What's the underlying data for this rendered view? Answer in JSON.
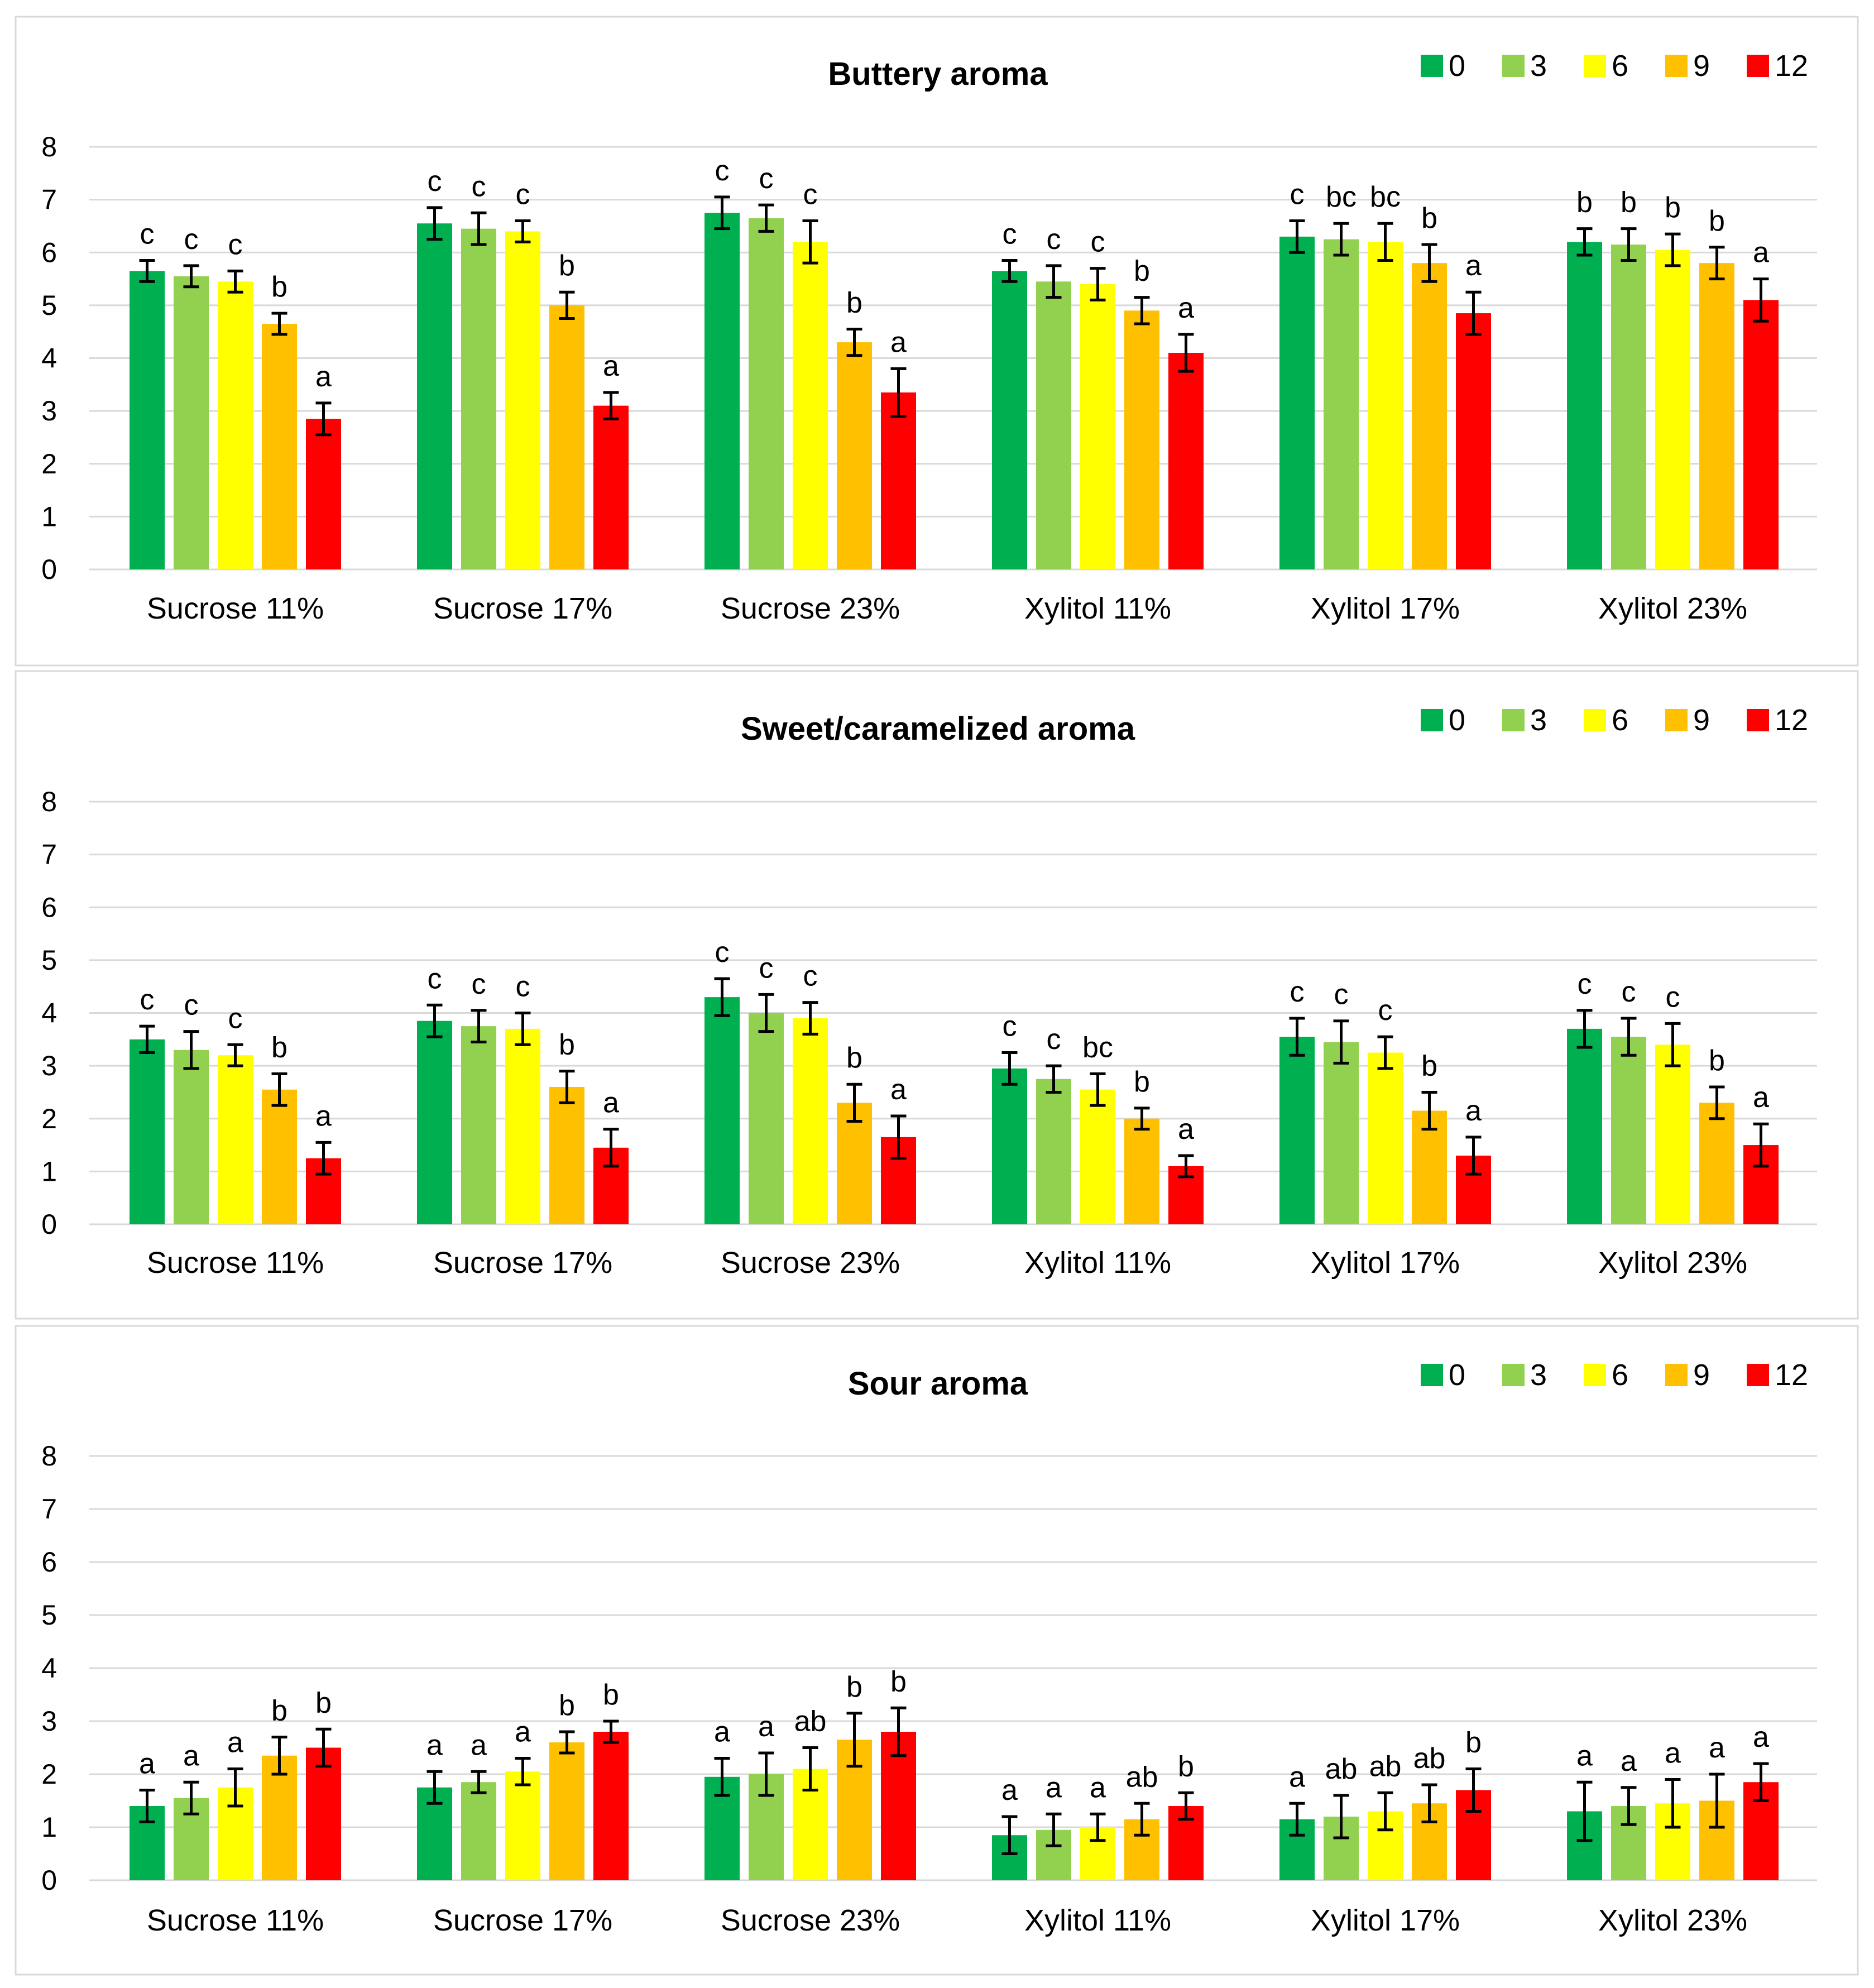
{
  "legend": {
    "entries": [
      {
        "label": "0",
        "color": "#00B050"
      },
      {
        "label": "3",
        "color": "#92D050"
      },
      {
        "label": "6",
        "color": "#FFFF00"
      },
      {
        "label": "9",
        "color": "#FFC000"
      },
      {
        "label": "12",
        "color": "#FF0000"
      }
    ]
  },
  "chart_data": [
    {
      "type": "bar",
      "title": "Buttery aroma",
      "ylim": [
        0,
        8
      ],
      "yticks": [
        0,
        1,
        2,
        3,
        4,
        5,
        6,
        7,
        8
      ],
      "categories": [
        "Sucrose 11%",
        "Sucrose 17%",
        "Sucrose 23%",
        "Xylitol 11%",
        "Xylitol 17%",
        "Xylitol 23%"
      ],
      "series": [
        {
          "name": "0",
          "color": "#00B050",
          "values": [
            5.65,
            6.55,
            6.75,
            5.65,
            6.3,
            6.2
          ],
          "errors": [
            0.2,
            0.3,
            0.3,
            0.2,
            0.3,
            0.25
          ],
          "labels": [
            "c",
            "c",
            "c",
            "c",
            "c",
            "b"
          ]
        },
        {
          "name": "3",
          "color": "#92D050",
          "values": [
            5.55,
            6.45,
            6.65,
            5.45,
            6.25,
            6.15
          ],
          "errors": [
            0.2,
            0.3,
            0.25,
            0.3,
            0.3,
            0.3
          ],
          "labels": [
            "c",
            "c",
            "c",
            "c",
            "bc",
            "b"
          ]
        },
        {
          "name": "6",
          "color": "#FFFF00",
          "values": [
            5.45,
            6.4,
            6.2,
            5.4,
            6.2,
            6.05
          ],
          "errors": [
            0.2,
            0.2,
            0.4,
            0.3,
            0.35,
            0.3
          ],
          "labels": [
            "c",
            "c",
            "c",
            "c",
            "bc",
            "b"
          ]
        },
        {
          "name": "9",
          "color": "#FFC000",
          "values": [
            4.65,
            5.0,
            4.3,
            4.9,
            5.8,
            5.8
          ],
          "errors": [
            0.2,
            0.25,
            0.25,
            0.25,
            0.35,
            0.3
          ],
          "labels": [
            "b",
            "b",
            "b",
            "b",
            "b",
            "b"
          ]
        },
        {
          "name": "12",
          "color": "#FF0000",
          "values": [
            2.85,
            3.1,
            3.35,
            4.1,
            4.85,
            5.1
          ],
          "errors": [
            0.3,
            0.25,
            0.45,
            0.35,
            0.4,
            0.4
          ],
          "labels": [
            "a",
            "a",
            "a",
            "a",
            "a",
            "a"
          ]
        }
      ]
    },
    {
      "type": "bar",
      "title": "Sweet/caramelized aroma",
      "ylim": [
        0,
        8
      ],
      "yticks": [
        0,
        1,
        2,
        3,
        4,
        5,
        6,
        7,
        8
      ],
      "categories": [
        "Sucrose 11%",
        "Sucrose 17%",
        "Sucrose 23%",
        "Xylitol 11%",
        "Xylitol 17%",
        "Xylitol 23%"
      ],
      "series": [
        {
          "name": "0",
          "color": "#00B050",
          "values": [
            3.5,
            3.85,
            4.3,
            2.95,
            3.55,
            3.7
          ],
          "errors": [
            0.25,
            0.3,
            0.35,
            0.3,
            0.35,
            0.35
          ],
          "labels": [
            "c",
            "c",
            "c",
            "c",
            "c",
            "c"
          ]
        },
        {
          "name": "3",
          "color": "#92D050",
          "values": [
            3.3,
            3.75,
            4.0,
            2.75,
            3.45,
            3.55
          ],
          "errors": [
            0.35,
            0.3,
            0.35,
            0.25,
            0.4,
            0.35
          ],
          "labels": [
            "c",
            "c",
            "c",
            "c",
            "c",
            "c"
          ]
        },
        {
          "name": "6",
          "color": "#FFFF00",
          "values": [
            3.2,
            3.7,
            3.9,
            2.55,
            3.25,
            3.4
          ],
          "errors": [
            0.2,
            0.3,
            0.3,
            0.3,
            0.3,
            0.4
          ],
          "labels": [
            "c",
            "c",
            "c",
            "bc",
            "c",
            "c"
          ]
        },
        {
          "name": "9",
          "color": "#FFC000",
          "values": [
            2.55,
            2.6,
            2.3,
            2.0,
            2.15,
            2.3
          ],
          "errors": [
            0.3,
            0.3,
            0.35,
            0.2,
            0.35,
            0.3
          ],
          "labels": [
            "b",
            "b",
            "b",
            "b",
            "b",
            "b"
          ]
        },
        {
          "name": "12",
          "color": "#FF0000",
          "values": [
            1.25,
            1.45,
            1.65,
            1.1,
            1.3,
            1.5
          ],
          "errors": [
            0.3,
            0.35,
            0.4,
            0.2,
            0.35,
            0.4
          ],
          "labels": [
            "a",
            "a",
            "a",
            "a",
            "a",
            "a"
          ]
        }
      ]
    },
    {
      "type": "bar",
      "title": "Sour aroma",
      "ylim": [
        0,
        8
      ],
      "yticks": [
        0,
        1,
        2,
        3,
        4,
        5,
        6,
        7,
        8
      ],
      "categories": [
        "Sucrose 11%",
        "Sucrose 17%",
        "Sucrose 23%",
        "Xylitol 11%",
        "Xylitol 17%",
        "Xylitol 23%"
      ],
      "series": [
        {
          "name": "0",
          "color": "#00B050",
          "values": [
            1.4,
            1.75,
            1.95,
            0.85,
            1.15,
            1.3
          ],
          "errors": [
            0.3,
            0.3,
            0.35,
            0.35,
            0.3,
            0.55
          ],
          "labels": [
            "a",
            "a",
            "a",
            "a",
            "a",
            "a"
          ]
        },
        {
          "name": "3",
          "color": "#92D050",
          "values": [
            1.55,
            1.85,
            2.0,
            0.95,
            1.2,
            1.4
          ],
          "errors": [
            0.3,
            0.2,
            0.4,
            0.3,
            0.4,
            0.35
          ],
          "labels": [
            "a",
            "a",
            "a",
            "a",
            "ab",
            "a"
          ]
        },
        {
          "name": "6",
          "color": "#FFFF00",
          "values": [
            1.75,
            2.05,
            2.1,
            1.0,
            1.3,
            1.45
          ],
          "errors": [
            0.35,
            0.25,
            0.4,
            0.25,
            0.35,
            0.45
          ],
          "labels": [
            "a",
            "a",
            "ab",
            "a",
            "ab",
            "a"
          ]
        },
        {
          "name": "9",
          "color": "#FFC000",
          "values": [
            2.35,
            2.6,
            2.65,
            1.15,
            1.45,
            1.5
          ],
          "errors": [
            0.35,
            0.2,
            0.5,
            0.3,
            0.35,
            0.5
          ],
          "labels": [
            "b",
            "b",
            "b",
            "ab",
            "ab",
            "a"
          ]
        },
        {
          "name": "12",
          "color": "#FF0000",
          "values": [
            2.5,
            2.8,
            2.8,
            1.4,
            1.7,
            1.85
          ],
          "errors": [
            0.35,
            0.2,
            0.45,
            0.25,
            0.4,
            0.35
          ],
          "labels": [
            "b",
            "b",
            "b",
            "b",
            "b",
            "a"
          ]
        }
      ]
    }
  ]
}
